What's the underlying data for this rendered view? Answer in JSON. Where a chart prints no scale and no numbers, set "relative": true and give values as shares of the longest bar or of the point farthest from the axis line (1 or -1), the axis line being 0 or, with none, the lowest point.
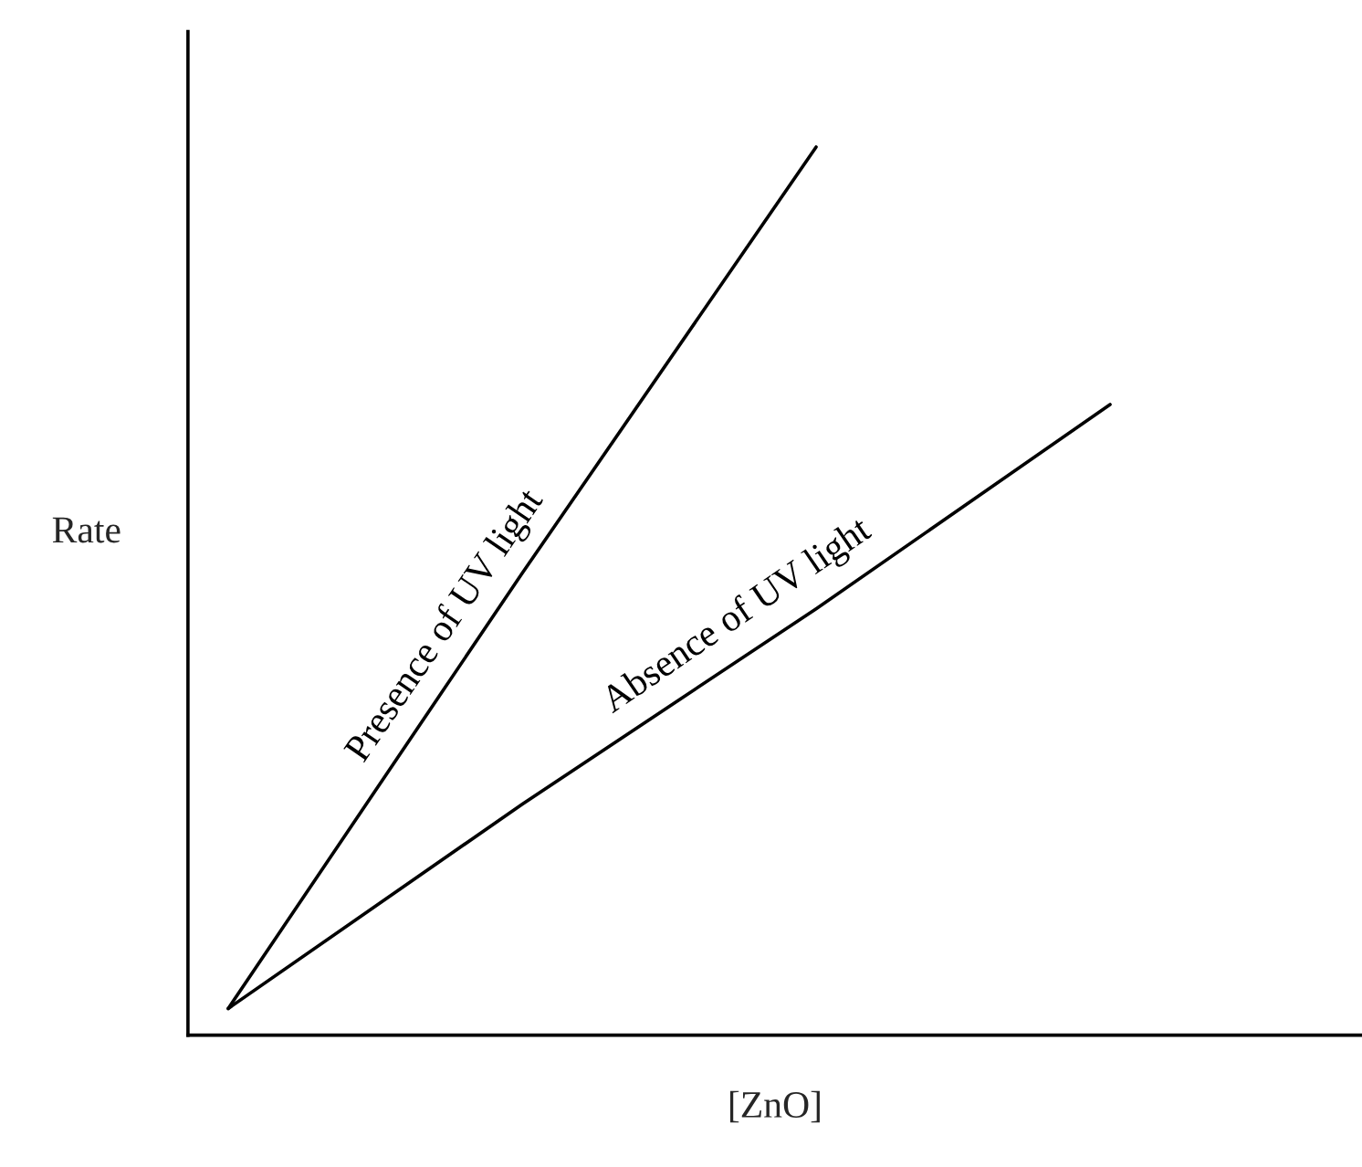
{
  "chart_data": {
    "type": "line",
    "relative": true,
    "xlabel": "[ZnO]",
    "ylabel": "Rate",
    "categories": [
      null,
      null,
      null,
      null
    ],
    "series": [
      {
        "name": "Presence of UV light",
        "color": "#000000",
        "values": [
          0.03,
          0.52,
          1.0,
          null
        ]
      },
      {
        "name": "Absence of UV light",
        "color": "#000000",
        "values": [
          0.03,
          0.26,
          0.48,
          0.71
        ]
      }
    ],
    "marker": "none",
    "line_style": "solid"
  }
}
